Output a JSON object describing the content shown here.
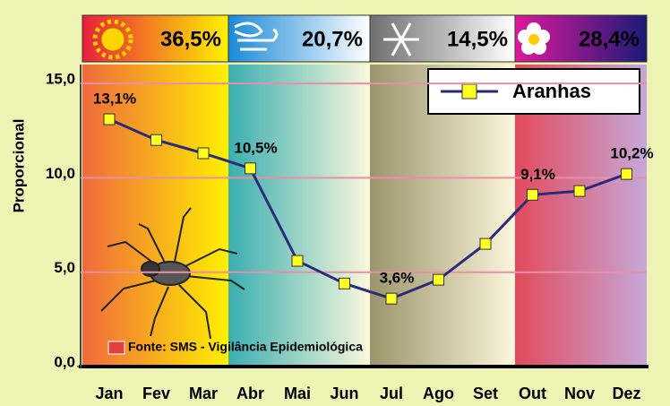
{
  "chart_data": {
    "type": "line",
    "ylabel": "Proporcional",
    "source": "Fonte: SMS - Vigilância Epidemiológica",
    "categories": [
      "Jan",
      "Fev",
      "Mar",
      "Abr",
      "Mai",
      "Jun",
      "Jul",
      "Ago",
      "Set",
      "Out",
      "Nov",
      "Dez"
    ],
    "series": [
      {
        "name": "Aranhas",
        "color": "#2b2b7a",
        "values": [
          13.1,
          12.0,
          11.3,
          10.5,
          5.6,
          4.4,
          3.6,
          4.6,
          6.5,
          9.1,
          9.3,
          10.2
        ],
        "value_labels": [
          "13,1%",
          null,
          null,
          "10,5%",
          null,
          null,
          "3,6%",
          null,
          null,
          "9,1%",
          null,
          "10,2%"
        ]
      }
    ],
    "seasons": [
      {
        "value": 36.5,
        "label": "36,5%"
      },
      {
        "value": 20.7,
        "label": "20,7%"
      },
      {
        "value": 14.5,
        "label": "14,5%"
      },
      {
        "value": 28.4,
        "label": "28,4%"
      }
    ],
    "ylim": [
      0,
      16
    ],
    "yticks": [
      {
        "value": 0,
        "label": "0,0"
      },
      {
        "value": 5,
        "label": "5,0"
      },
      {
        "value": 10,
        "label": "10,0"
      },
      {
        "value": 15,
        "label": "15,0"
      }
    ],
    "grid": true
  }
}
